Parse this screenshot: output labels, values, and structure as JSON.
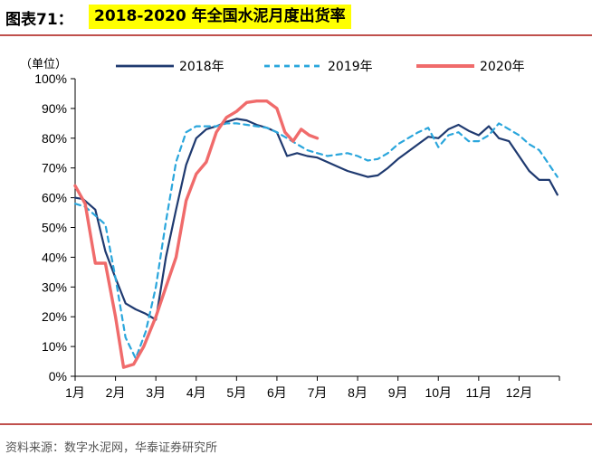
{
  "header": {
    "figure_label": "图表71：",
    "title": "2018-2020 年全国水泥月度出货率"
  },
  "source": "资料来源：数字水泥网，华泰证券研究所",
  "colors": {
    "s2018": "#1f3a70",
    "s2019": "#2aa6dc",
    "s2020": "#f06b6b",
    "rule": "#c0504d",
    "highlight": "#ffff00"
  },
  "chart_data": {
    "type": "line",
    "unit_label": "（单位）",
    "ylim": [
      0,
      100
    ],
    "y_ticks": [
      "0%",
      "10%",
      "20%",
      "30%",
      "40%",
      "50%",
      "60%",
      "70%",
      "80%",
      "90%",
      "100%"
    ],
    "x_ticks": [
      "1月",
      "2月",
      "3月",
      "4月",
      "5月",
      "6月",
      "7月",
      "8月",
      "9月",
      "10月",
      "11月",
      "12月"
    ],
    "legend_position": "top",
    "grid": false,
    "series": [
      {
        "name": "2018年",
        "style": "solid",
        "x": [
          1.0,
          1.2,
          1.5,
          1.75,
          2.0,
          2.25,
          2.5,
          2.75,
          3.0,
          3.25,
          3.5,
          3.75,
          4.0,
          4.25,
          4.5,
          4.75,
          5.0,
          5.25,
          5.5,
          5.75,
          6.0,
          6.25,
          6.5,
          6.75,
          7.0,
          7.25,
          7.5,
          7.75,
          8.0,
          8.25,
          8.5,
          8.75,
          9.0,
          9.25,
          9.5,
          9.75,
          10.0,
          10.25,
          10.5,
          10.75,
          11.0,
          11.25,
          11.5,
          11.75,
          12.0,
          12.25,
          12.5,
          12.75,
          12.95
        ],
        "values": [
          60,
          59.5,
          56,
          42,
          33,
          24.5,
          22.5,
          21,
          19,
          40,
          56,
          71,
          80,
          83,
          84,
          85.5,
          86.5,
          86,
          84.5,
          83.5,
          82,
          74,
          75,
          74,
          73.5,
          72,
          70.5,
          69,
          68,
          67,
          67.5,
          70,
          73,
          75.5,
          78,
          80.5,
          80,
          83,
          84.5,
          82.5,
          81,
          84,
          80,
          79,
          74,
          69,
          66,
          66,
          61
        ]
      },
      {
        "name": "2019年",
        "style": "dashed",
        "x": [
          1.0,
          1.25,
          1.5,
          1.75,
          2.0,
          2.25,
          2.5,
          2.75,
          3.0,
          3.25,
          3.5,
          3.75,
          4.0,
          4.25,
          4.5,
          4.75,
          5.0,
          5.25,
          5.5,
          5.75,
          6.0,
          6.25,
          6.5,
          6.75,
          7.0,
          7.25,
          7.5,
          7.75,
          8.0,
          8.25,
          8.5,
          8.75,
          9.0,
          9.25,
          9.5,
          9.75,
          10.0,
          10.25,
          10.5,
          10.75,
          11.0,
          11.25,
          11.5,
          11.75,
          12.0,
          12.25,
          12.5,
          12.75,
          12.95
        ],
        "values": [
          58,
          57,
          54,
          51,
          33,
          13,
          6,
          15,
          30,
          52,
          72,
          82,
          84,
          84,
          84,
          85,
          85,
          84.5,
          84,
          83.5,
          82,
          80,
          78,
          76,
          75,
          74,
          74.5,
          75,
          74,
          72.5,
          73,
          75,
          78,
          80,
          82,
          83.5,
          77,
          81,
          82,
          79,
          79,
          81,
          85,
          83,
          81,
          78,
          76,
          71,
          67
        ]
      },
      {
        "name": "2020年",
        "style": "solid",
        "x": [
          1.0,
          1.25,
          1.5,
          1.75,
          2.0,
          2.2,
          2.45,
          2.7,
          3.0,
          3.25,
          3.5,
          3.75,
          4.0,
          4.25,
          4.5,
          4.75,
          5.0,
          5.25,
          5.5,
          5.75,
          6.0,
          6.2,
          6.4,
          6.6,
          6.8,
          7.0
        ],
        "values": [
          64,
          58,
          38,
          38,
          20,
          3,
          4,
          10,
          20,
          30,
          40,
          59,
          68,
          72,
          82,
          87,
          89,
          92,
          92.5,
          92.5,
          90,
          82,
          79,
          83,
          81,
          80
        ]
      }
    ]
  }
}
